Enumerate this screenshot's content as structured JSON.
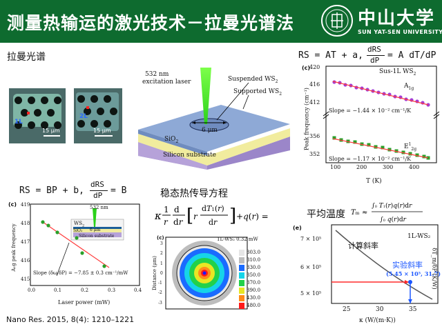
{
  "header": {
    "title": "测量热输运的激光技术－拉曼光谱法",
    "logo_cn": "中山大学",
    "logo_en": "SUN YAT-SEN UNIVERSITY",
    "emblem_text": "中山大學"
  },
  "sections": {
    "raman_title": "拉曼光谱",
    "eq_top": "RS = AT + a,",
    "eq_top_frac_num": "dRS",
    "eq_top_frac_den": "dP",
    "eq_top_tail": "= A dT/dP",
    "eq_bottom": "RS = BP + b,",
    "eq_bottom_frac_num": "dRS",
    "eq_bottom_frac_den": "dP",
    "eq_bottom_tail": "= B",
    "heat_eq_title": "稳态热传导方程",
    "avg_temp_label": "平均温度",
    "reference": "Nano Res. 2015, 8(4): 1210–1221"
  },
  "micrographs": [
    {
      "flag": "1L",
      "scale": "15 μm"
    },
    {
      "flag": "2L",
      "scale": "15 μm"
    }
  ],
  "schematic": {
    "laser_label_1": "532 nm",
    "laser_label_2": "excitation laser",
    "suspended": "Suspended WS",
    "suspended_sub": "2",
    "supported": "Supported WS",
    "supported_sub": "2",
    "spot": "6 μm",
    "sio2": "SiO",
    "sio2_sub": "2",
    "silicon": "Silicon substrate"
  },
  "panel_c_top": {
    "label": "(c)",
    "title": "Sus-1L WS",
    "title_sub": "2",
    "ylabel": "Peak frequency (cm⁻¹)",
    "xlabel": "T (K)",
    "mode1": "A",
    "mode1_sub": "1g",
    "mode2": "E",
    "mode2_sub": "2g",
    "mode2_sup": "1",
    "slope1": "Slope = −1.44 × 10⁻² cm⁻¹/K",
    "slope2": "Slope = −1.17 × 10⁻² cm⁻¹/K",
    "y_ticks_top": [
      "420",
      "416",
      "412"
    ],
    "y_ticks_bottom": [
      "356",
      "352"
    ],
    "x_ticks": [
      "100",
      "200",
      "300",
      "400"
    ]
  },
  "panel_c_bottom": {
    "label": "(c)",
    "ylabel": "A₁g peak frequency",
    "xlabel": "Laser power (mW)",
    "laser": "532 nm",
    "ws2": "WS",
    "ws2_sub": "2",
    "spot": "6 μm",
    "sio2": "SiO₂",
    "silicon": "Silicon substrate",
    "slope": "Slope (δω/δP) = −7.85 ± 0.3 cm⁻¹/mW",
    "y_ticks": [
      "419",
      "418",
      "417",
      "416",
      "415"
    ],
    "x_ticks": [
      "0.0",
      "0.1",
      "0.2",
      "0.3",
      "0.4"
    ]
  },
  "heatmap": {
    "label": "(c)",
    "title": "1L-WS₂ 0.32 mW",
    "ylabel": "Distance (μm)",
    "y_ticks": [
      "3",
      "2",
      "1",
      "0",
      "-1",
      "-2",
      "-3"
    ],
    "legend": [
      "303.0",
      "310.0",
      "330.0",
      "350.0",
      "370.0",
      "390.0",
      "430.0",
      "480.0"
    ],
    "legend_colors": [
      "#e6e6e6",
      "#bdbdbd",
      "#1a6bff",
      "#16d4e8",
      "#22d14a",
      "#e8e624",
      "#ff8a1a",
      "#ff1a1a"
    ]
  },
  "panel_e": {
    "label": "(e)",
    "title": "1L-WS₂",
    "ylabel": "δT_m/δP (K/W)",
    "xlabel": "κ (W/(m·K))",
    "calc_slope": "计算斜率",
    "exp_slope": "实验斜率",
    "point_label": "(5.45 × 10⁵, 31.7)",
    "y_ticks": [
      "7 × 10⁵",
      "6 × 10⁵",
      "5 × 10⁵"
    ],
    "x_ticks": [
      "25",
      "30",
      "35"
    ],
    "accent": "#1a56ff",
    "arrow_color": "#ff2a2a"
  }
}
